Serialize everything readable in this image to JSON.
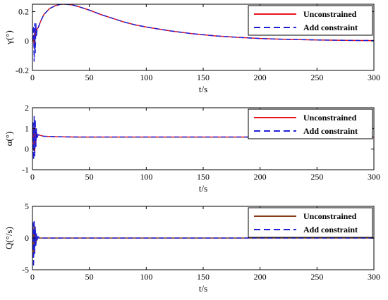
{
  "colors": {
    "unconstrained_1_2": "#e8141c",
    "unconstrained_3": "#8a3a1a",
    "constrained": "#1f1fd6",
    "axis": "#000000"
  },
  "chart_data": [
    {
      "type": "line",
      "xlabel": "t/s",
      "ylabel": "γ(°)",
      "xlim": [
        0,
        300
      ],
      "ylim": [
        -0.2,
        0.25
      ],
      "xticks": [
        "0",
        "50",
        "100",
        "150",
        "200",
        "250",
        "300"
      ],
      "yticks": [
        "-0.2",
        "0",
        "0.2"
      ],
      "grid": false,
      "legend_position": "top-right",
      "series": [
        {
          "name": "Unconstrained",
          "style": "solid",
          "color": "#e8141c",
          "x": [
            0,
            1,
            1.5,
            2,
            2.5,
            3,
            3.5,
            4,
            5,
            7,
            10,
            15,
            20,
            25,
            30,
            35,
            40,
            50,
            60,
            70,
            80,
            90,
            100,
            120,
            140,
            160,
            180,
            200,
            220,
            250,
            280,
            300
          ],
          "y": [
            0,
            0.04,
            -0.05,
            0.07,
            0.02,
            0.09,
            0.04,
            0.08,
            0.09,
            0.13,
            0.18,
            0.22,
            0.24,
            0.25,
            0.25,
            0.245,
            0.235,
            0.21,
            0.18,
            0.155,
            0.13,
            0.11,
            0.095,
            0.07,
            0.05,
            0.035,
            0.025,
            0.017,
            0.012,
            0.007,
            0.004,
            0.003
          ]
        },
        {
          "name": "Add constraint",
          "style": "dashed",
          "color": "#1f1fd6",
          "x": [
            0,
            1,
            1.5,
            2,
            2.5,
            3,
            3.5,
            4,
            5,
            7,
            10,
            15,
            20,
            25,
            30,
            35,
            40,
            50,
            60,
            70,
            80,
            90,
            100,
            120,
            140,
            160,
            180,
            200,
            220,
            250,
            280,
            300
          ],
          "y": [
            0,
            0.1,
            -0.14,
            0.12,
            -0.08,
            0.12,
            0.03,
            0.09,
            0.09,
            0.13,
            0.18,
            0.22,
            0.24,
            0.25,
            0.25,
            0.245,
            0.235,
            0.21,
            0.18,
            0.155,
            0.13,
            0.11,
            0.095,
            0.07,
            0.05,
            0.035,
            0.025,
            0.017,
            0.012,
            0.007,
            0.004,
            0.003
          ]
        }
      ]
    },
    {
      "type": "line",
      "xlabel": "t/s",
      "ylabel": "α(°)",
      "xlim": [
        0,
        300
      ],
      "ylim": [
        -1,
        2
      ],
      "xticks": [
        "0",
        "50",
        "100",
        "150",
        "200",
        "250",
        "300"
      ],
      "yticks": [
        "-1",
        "0",
        "1",
        "2"
      ],
      "grid": false,
      "legend_position": "top-right",
      "series": [
        {
          "name": "Unconstrained",
          "style": "solid",
          "color": "#e8141c",
          "x": [
            0,
            0.5,
            1,
            1.5,
            2,
            2.5,
            3,
            3.5,
            4,
            5,
            7,
            10,
            20,
            40,
            60,
            80,
            100,
            150,
            200,
            250,
            300
          ],
          "y": [
            0.5,
            0.9,
            0.2,
            1.2,
            -0.2,
            1.0,
            0.3,
            0.8,
            0.6,
            0.7,
            0.66,
            0.62,
            0.6,
            0.58,
            0.58,
            0.58,
            0.58,
            0.58,
            0.58,
            0.58,
            0.58
          ]
        },
        {
          "name": "Add constraint",
          "style": "dashed",
          "color": "#1f1fd6",
          "x": [
            0,
            0.5,
            1,
            1.5,
            2,
            2.5,
            3,
            3.5,
            4,
            5,
            7,
            10,
            20,
            40,
            60,
            80,
            100,
            150,
            200,
            250,
            300
          ],
          "y": [
            0.5,
            1.3,
            -0.5,
            1.6,
            -0.4,
            1.4,
            0.1,
            1.0,
            0.5,
            0.7,
            0.66,
            0.62,
            0.6,
            0.58,
            0.58,
            0.58,
            0.58,
            0.58,
            0.58,
            0.58,
            0.58
          ]
        }
      ]
    },
    {
      "type": "line",
      "xlabel": "t/s",
      "ylabel": "Q(°/s)",
      "xlim": [
        0,
        300
      ],
      "ylim": [
        -5,
        5
      ],
      "xticks": [
        "0",
        "50",
        "100",
        "150",
        "200",
        "250",
        "300"
      ],
      "yticks": [
        "-5",
        "0",
        "5"
      ],
      "grid": false,
      "legend_position": "top-right",
      "series": [
        {
          "name": "Unconstrained",
          "style": "solid",
          "color": "#8a3a1a",
          "x": [
            0,
            0.5,
            1,
            1.5,
            2,
            2.5,
            3,
            3.5,
            4,
            5,
            6,
            8,
            10,
            20,
            50,
            100,
            150,
            200,
            250,
            300
          ],
          "y": [
            0,
            1.5,
            -3,
            2,
            -1.5,
            1,
            -0.8,
            0.5,
            -0.3,
            0.1,
            0,
            0,
            0,
            0,
            0,
            0,
            0,
            0,
            0,
            0
          ]
        },
        {
          "name": "Add constraint",
          "style": "dashed",
          "color": "#1f1fd6",
          "x": [
            0,
            0.5,
            1,
            1.5,
            2,
            2.5,
            3,
            3.5,
            4,
            5,
            6,
            8,
            10,
            20,
            50,
            100,
            150,
            200,
            250,
            300
          ],
          "y": [
            0,
            2.5,
            -4.5,
            2.8,
            -2.5,
            1.8,
            -1.2,
            0.8,
            -0.5,
            0.2,
            0,
            0,
            0,
            0,
            0,
            0,
            0,
            0,
            0,
            0
          ]
        }
      ]
    }
  ]
}
